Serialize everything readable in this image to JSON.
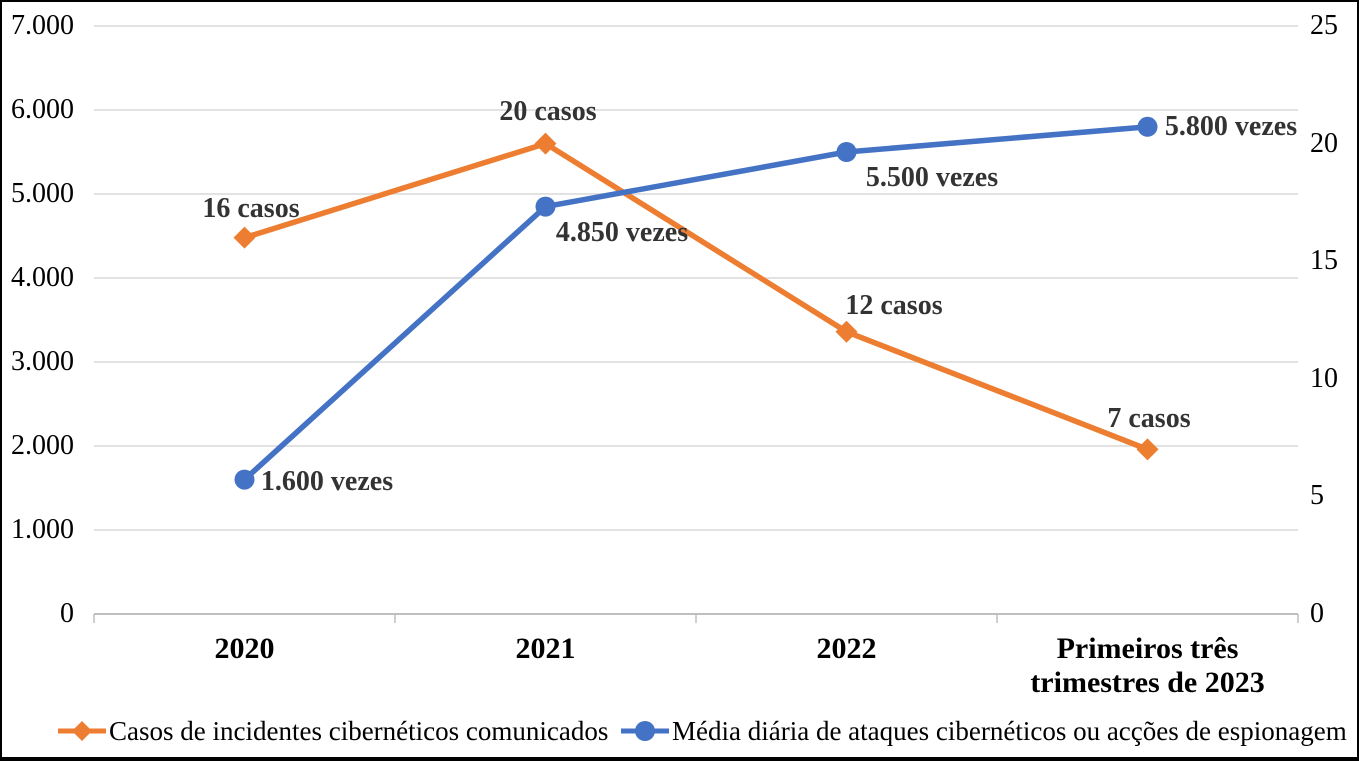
{
  "chart_data": {
    "type": "line",
    "dual_axis": true,
    "grid": true,
    "legend_position": "bottom",
    "categories": [
      "2020",
      "2021",
      "2022",
      "Primeiros três trimestres de 2023"
    ],
    "x_tick_display": [
      [
        "2020"
      ],
      [
        "2021"
      ],
      [
        "2022"
      ],
      [
        "Primeiros três",
        "trimestres de 2023"
      ]
    ],
    "series": [
      {
        "name": "Casos de incidentes cibernéticos comunicados",
        "axis": "right",
        "color": "#ED7D31",
        "marker": "diamond",
        "values": [
          16,
          20,
          12,
          7
        ],
        "labels": [
          "16 casos",
          "20 casos",
          "12 casos",
          "7 casos"
        ]
      },
      {
        "name": "Média diária de ataques cibernéticos ou acções de espionagem",
        "axis": "left",
        "color": "#4472C4",
        "marker": "circle",
        "values": [
          1600,
          4850,
          5500,
          5800
        ],
        "labels": [
          "1.600 vezes",
          "4.850 vezes",
          "5.500 vezes",
          "5.800 vezes"
        ]
      }
    ],
    "left_axis": {
      "min": 0,
      "max": 7000,
      "ticks": [
        "7.000",
        "6.000",
        "5.000",
        "4.000",
        "3.000",
        "2.000",
        "1.000",
        "0"
      ]
    },
    "right_axis": {
      "min": 0,
      "max": 25,
      "ticks": [
        "25",
        "20",
        "15",
        "10",
        "5",
        "0"
      ]
    },
    "colors": {
      "grid": "#D9D9D9",
      "axis_line": "#BFBFBF",
      "data_label": "#333333",
      "tick_text": "#000000"
    }
  }
}
